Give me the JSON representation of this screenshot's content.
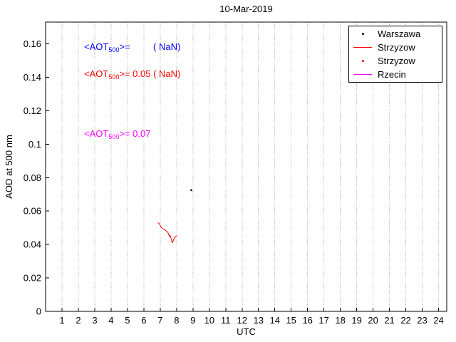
{
  "figure": {
    "title": "10-Mar-2019"
  },
  "chart_data": {
    "type": "line",
    "title": "10-Mar-2019",
    "xlabel": "UTC",
    "ylabel": "AOD at 500 nm",
    "xlim": [
      0,
      24.5
    ],
    "ylim": [
      0,
      0.173
    ],
    "x_ticks": [
      1,
      2,
      3,
      4,
      5,
      6,
      7,
      8,
      9,
      10,
      11,
      12,
      13,
      14,
      15,
      16,
      17,
      18,
      19,
      20,
      21,
      22,
      23,
      24
    ],
    "y_ticks": [
      {
        "value": 0,
        "label": "0"
      },
      {
        "value": 0.02,
        "label": "0.02"
      },
      {
        "value": 0.04,
        "label": "0.04"
      },
      {
        "value": 0.06,
        "label": "0.06"
      },
      {
        "value": 0.08,
        "label": "0.08"
      },
      {
        "value": 0.1,
        "label": "0.1"
      },
      {
        "value": 0.12,
        "label": "0.12"
      },
      {
        "value": 0.14,
        "label": "0.14"
      },
      {
        "value": 0.16,
        "label": "0.16"
      }
    ],
    "grid": "vertical-dotted",
    "legend_position": "top-right",
    "legend": [
      {
        "label": "Warszawa",
        "marker": "dot",
        "color": "#000000"
      },
      {
        "label": "Strzyzow",
        "marker": "line",
        "color": "#ff0000"
      },
      {
        "label": "Strzyzow",
        "marker": "dot",
        "color": "#ff0000"
      },
      {
        "label": "Rzecin",
        "marker": "line",
        "color": "#ff00ff"
      }
    ],
    "series": [
      {
        "name": "Warszawa",
        "mode": "scatter",
        "color": "#000000",
        "points": [
          [
            8.9,
            0.0725
          ]
        ]
      },
      {
        "name": "Strzyzow",
        "mode": "line",
        "color": "#ff0000",
        "points": [
          [
            6.85,
            0.0531
          ],
          [
            6.92,
            0.0527
          ],
          [
            7.0,
            0.0515
          ],
          [
            7.06,
            0.0503
          ],
          [
            7.14,
            0.0497
          ],
          [
            7.22,
            0.0491
          ],
          [
            7.3,
            0.0486
          ],
          [
            7.38,
            0.048
          ],
          [
            7.46,
            0.0474
          ],
          [
            7.52,
            0.046
          ],
          [
            7.56,
            0.0448
          ],
          [
            7.6,
            0.0455
          ],
          [
            7.64,
            0.0445
          ],
          [
            7.7,
            0.042
          ],
          [
            7.74,
            0.041
          ],
          [
            7.8,
            0.0424
          ],
          [
            7.88,
            0.0441
          ],
          [
            7.96,
            0.045
          ],
          [
            8.05,
            0.0453
          ]
        ]
      },
      {
        "name": "Strzyzow",
        "mode": "scatter",
        "color": "#ff0000",
        "points": []
      },
      {
        "name": "Rzecin",
        "mode": "line",
        "color": "#ff00ff",
        "points": []
      }
    ],
    "annotations": [
      {
        "pre": "<AOT",
        "sub": "500",
        "post": ">=         ( NaN)",
        "color": "#0000ff",
        "x": 2.35,
        "y": 0.158
      },
      {
        "pre": "<AOT",
        "sub": "500",
        "post": ">= 0.05 ( NaN)",
        "color": "#ff0000",
        "x": 2.35,
        "y": 0.142
      },
      {
        "pre": "<AOT",
        "sub": "500",
        "post": ">= 0.07",
        "color": "#ff00ff",
        "x": 2.35,
        "y": 0.106
      }
    ]
  }
}
